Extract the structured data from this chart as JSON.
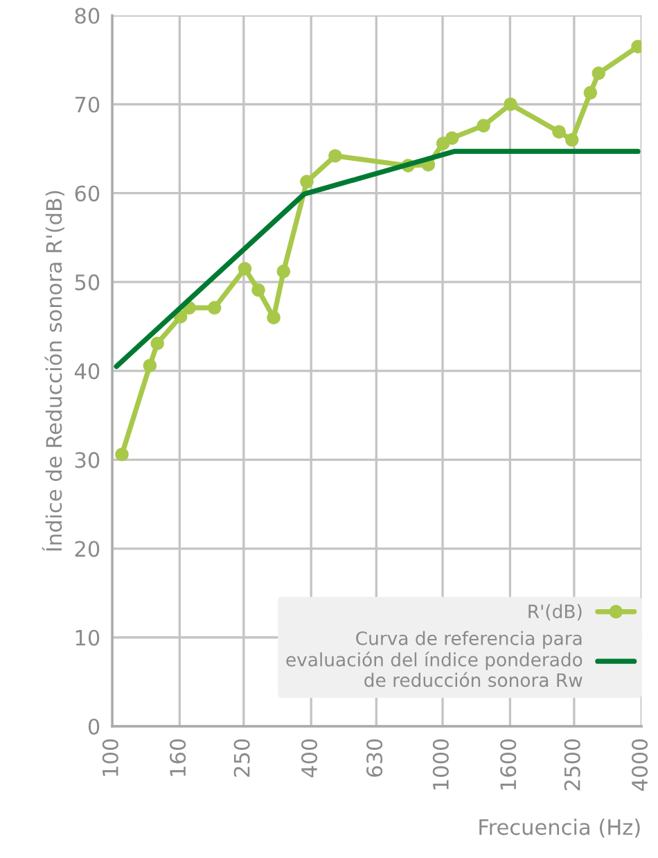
{
  "chart_data": {
    "type": "line",
    "xlabel": "Frecuencia (Hz)",
    "ylabel": "Índice de Reducción sonora R'(dB)",
    "log": "x",
    "xlim": [
      100,
      4000
    ],
    "xticks": [
      100,
      160,
      250,
      400,
      630,
      1000,
      1600,
      2500,
      4000
    ],
    "ylim": [
      0,
      80
    ],
    "yticks": [
      0,
      10,
      20,
      30,
      40,
      50,
      60,
      70,
      80
    ],
    "grid": true,
    "legend": "bottom right",
    "series": [
      {
        "name": "R'(dB)",
        "color": "#a8c84a",
        "marker": "circle",
        "x": [
          107,
          130,
          137,
          161,
          171,
          204,
          252,
          277,
          308,
          330,
          388,
          473,
          786,
          905,
          1003,
          1068,
          1330,
          1605,
          2250,
          2463,
          2800,
          2966,
          3900
        ],
        "values": [
          30.6,
          40.6,
          43.1,
          46.1,
          47.1,
          47.1,
          51.5,
          49.1,
          46.0,
          51.2,
          61.3,
          64.2,
          63.1,
          63.2,
          65.6,
          66.2,
          67.6,
          70.0,
          66.9,
          66.0,
          71.3,
          73.5,
          76.5
        ]
      },
      {
        "name": "Curva de referencia para\nevaluación del índice ponderado\nde reducción sonora Rw",
        "color": "#007a33",
        "marker": "none",
        "x": [
          103,
          381,
          1084,
          3900
        ],
        "values": [
          40.5,
          59.9,
          64.7,
          64.7
        ]
      }
    ]
  }
}
